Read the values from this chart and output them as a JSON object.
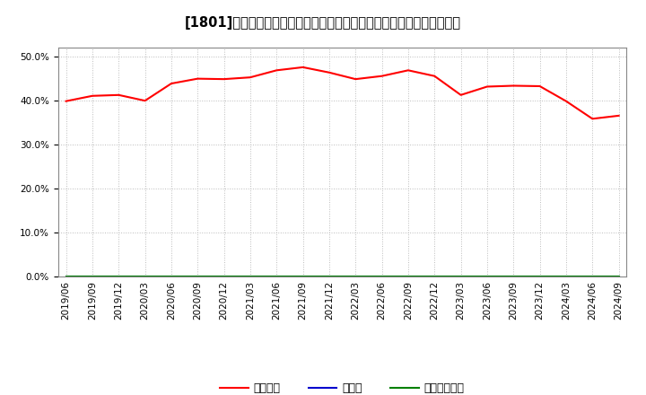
{
  "title": "[1801]　自己資本、のれん、繰延税金資産の総資産に対する比率の推移",
  "x_labels": [
    "2019/06",
    "2019/09",
    "2019/12",
    "2020/03",
    "2020/06",
    "2020/09",
    "2020/12",
    "2021/03",
    "2021/06",
    "2021/09",
    "2021/12",
    "2022/03",
    "2022/06",
    "2022/09",
    "2022/12",
    "2023/03",
    "2023/06",
    "2023/09",
    "2023/12",
    "2024/03",
    "2024/06",
    "2024/09"
  ],
  "jikoshihon": [
    39.8,
    41.0,
    41.2,
    39.9,
    43.8,
    44.9,
    44.8,
    45.2,
    46.8,
    47.5,
    46.3,
    44.8,
    45.5,
    46.8,
    45.5,
    41.2,
    43.1,
    43.3,
    43.2,
    39.8,
    35.8,
    36.5
  ],
  "noren": [
    0,
    0,
    0,
    0,
    0,
    0,
    0,
    0,
    0,
    0,
    0,
    0,
    0,
    0,
    0,
    0,
    0,
    0,
    0,
    0,
    0,
    0
  ],
  "kuenzeichisan": [
    0,
    0,
    0,
    0,
    0,
    0,
    0,
    0,
    0,
    0,
    0,
    0,
    0,
    0,
    0,
    0,
    0,
    0,
    0,
    0,
    0,
    0
  ],
  "line_colors": {
    "jikoshihon": "#ff0000",
    "noren": "#0000cd",
    "kuenzeichisan": "#008000"
  },
  "legend_labels": [
    "自己資本",
    "のれん",
    "繰延税金資産"
  ],
  "ylim": [
    0,
    52
  ],
  "yticks": [
    0.0,
    10.0,
    20.0,
    30.0,
    40.0,
    50.0
  ],
  "background_color": "#ffffff",
  "plot_bg_color": "#ffffff",
  "grid_color": "#bbbbbb",
  "title_fontsize": 10.5,
  "tick_fontsize": 7.5
}
